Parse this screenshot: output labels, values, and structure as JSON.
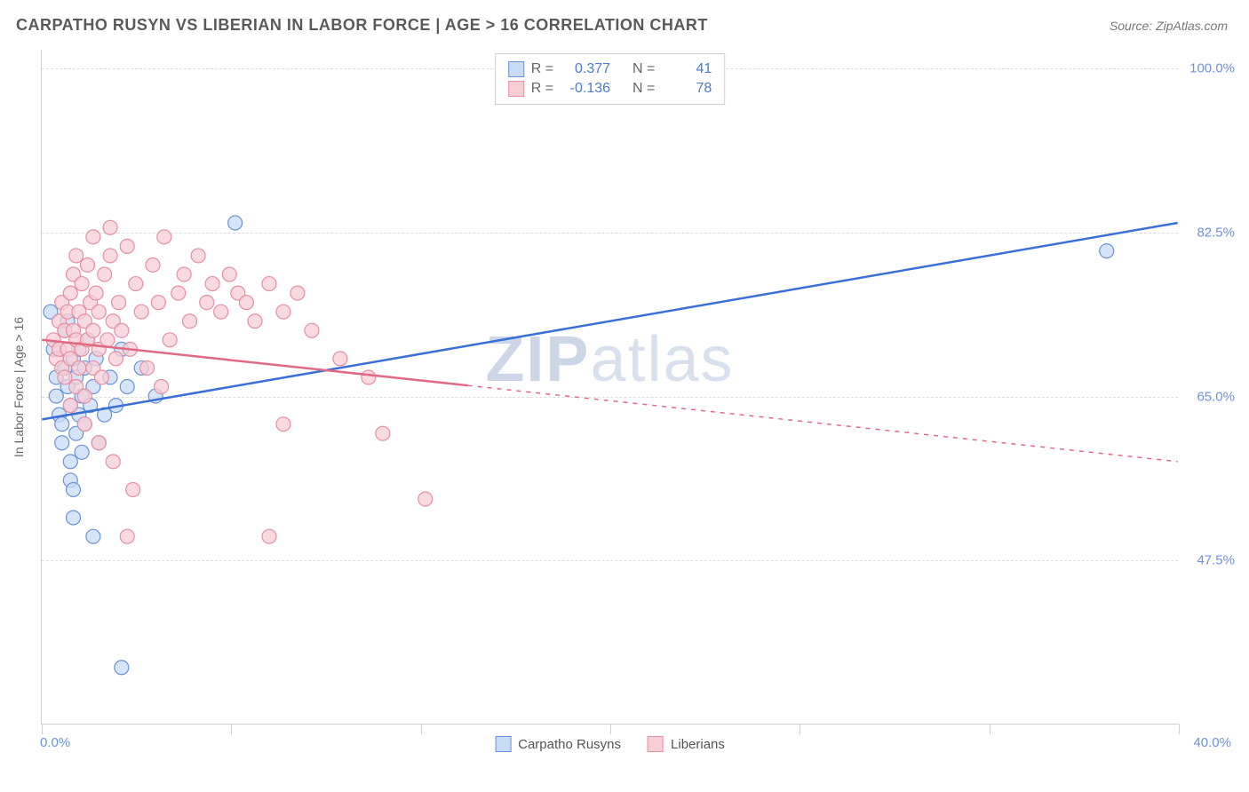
{
  "title": "CARPATHO RUSYN VS LIBERIAN IN LABOR FORCE | AGE > 16 CORRELATION CHART",
  "source": "Source: ZipAtlas.com",
  "y_axis_title": "In Labor Force | Age > 16",
  "watermark_bold": "ZIP",
  "watermark_rest": "atlas",
  "chart": {
    "ymin": 30.0,
    "ymax": 102.0,
    "xmin": 0.0,
    "xmax": 40.0,
    "yticks": [
      {
        "v": 100.0,
        "label": "100.0%"
      },
      {
        "v": 82.5,
        "label": "82.5%"
      },
      {
        "v": 65.0,
        "label": "65.0%"
      },
      {
        "v": 47.5,
        "label": "47.5%"
      }
    ],
    "xticks_v": [
      0,
      6.67,
      13.33,
      20,
      26.67,
      33.33,
      40
    ],
    "x_label_min": "0.0%",
    "x_label_max": "40.0%",
    "grid_color": "#dcdcdc",
    "border_color": "#cfcfcf"
  },
  "series": [
    {
      "name": "Carpatho Rusyns",
      "color_fill": "#c7dbf5",
      "color_stroke": "#6b93d6",
      "line_color": "#3a6fd8",
      "dash_after_x": 40,
      "R_label": "R =",
      "R_value": "0.377",
      "N_label": "N =",
      "N_value": "41",
      "reg": {
        "x1": 0,
        "y1": 62.5,
        "x2": 40,
        "y2": 83.5
      },
      "points": [
        [
          0.3,
          74
        ],
        [
          0.4,
          70
        ],
        [
          0.5,
          67
        ],
        [
          0.5,
          65
        ],
        [
          0.6,
          63
        ],
        [
          0.7,
          62
        ],
        [
          0.7,
          60
        ],
        [
          0.8,
          72
        ],
        [
          0.8,
          68
        ],
        [
          0.9,
          66
        ],
        [
          0.9,
          73
        ],
        [
          1.0,
          64
        ],
        [
          1.0,
          56
        ],
        [
          1.1,
          55
        ],
        [
          1.1,
          69
        ],
        [
          1.2,
          61
        ],
        [
          1.2,
          67
        ],
        [
          1.3,
          70
        ],
        [
          1.3,
          63
        ],
        [
          1.4,
          65
        ],
        [
          1.5,
          68
        ],
        [
          1.5,
          62
        ],
        [
          1.6,
          71
        ],
        [
          1.7,
          64
        ],
        [
          1.8,
          66
        ],
        [
          1.9,
          69
        ],
        [
          2.0,
          60
        ],
        [
          2.2,
          63
        ],
        [
          2.4,
          67
        ],
        [
          2.6,
          64
        ],
        [
          2.8,
          70
        ],
        [
          3.0,
          66
        ],
        [
          3.5,
          68
        ],
        [
          4.0,
          65
        ],
        [
          1.1,
          52
        ],
        [
          1.8,
          50
        ],
        [
          2.8,
          36
        ],
        [
          6.8,
          83.5
        ],
        [
          37.5,
          80.5
        ],
        [
          1.0,
          58
        ],
        [
          1.4,
          59
        ]
      ]
    },
    {
      "name": "Liberians",
      "color_fill": "#f7cdd6",
      "color_stroke": "#e68fa3",
      "line_color": "#e06a84",
      "dash_after_x": 15,
      "R_label": "R =",
      "R_value": "-0.136",
      "N_label": "N =",
      "N_value": "78",
      "reg": {
        "x1": 0,
        "y1": 71,
        "x2": 40,
        "y2": 58
      },
      "points": [
        [
          0.4,
          71
        ],
        [
          0.5,
          69
        ],
        [
          0.6,
          73
        ],
        [
          0.6,
          70
        ],
        [
          0.7,
          68
        ],
        [
          0.7,
          75
        ],
        [
          0.8,
          72
        ],
        [
          0.8,
          67
        ],
        [
          0.9,
          74
        ],
        [
          0.9,
          70
        ],
        [
          1.0,
          76
        ],
        [
          1.0,
          69
        ],
        [
          1.1,
          78
        ],
        [
          1.1,
          72
        ],
        [
          1.2,
          71
        ],
        [
          1.2,
          66
        ],
        [
          1.3,
          74
        ],
        [
          1.3,
          68
        ],
        [
          1.4,
          77
        ],
        [
          1.4,
          70
        ],
        [
          1.5,
          73
        ],
        [
          1.5,
          65
        ],
        [
          1.6,
          79
        ],
        [
          1.6,
          71
        ],
        [
          1.7,
          75
        ],
        [
          1.8,
          68
        ],
        [
          1.8,
          72
        ],
        [
          1.9,
          76
        ],
        [
          2.0,
          70
        ],
        [
          2.0,
          74
        ],
        [
          2.1,
          67
        ],
        [
          2.2,
          78
        ],
        [
          2.3,
          71
        ],
        [
          2.4,
          80
        ],
        [
          2.5,
          73
        ],
        [
          2.6,
          69
        ],
        [
          2.7,
          75
        ],
        [
          2.8,
          72
        ],
        [
          3.0,
          81
        ],
        [
          3.1,
          70
        ],
        [
          3.3,
          77
        ],
        [
          3.5,
          74
        ],
        [
          3.7,
          68
        ],
        [
          3.9,
          79
        ],
        [
          4.1,
          75
        ],
        [
          4.3,
          82
        ],
        [
          4.5,
          71
        ],
        [
          4.8,
          76
        ],
        [
          5.0,
          78
        ],
        [
          5.2,
          73
        ],
        [
          5.5,
          80
        ],
        [
          5.8,
          75
        ],
        [
          6.0,
          77
        ],
        [
          6.3,
          74
        ],
        [
          6.6,
          78
        ],
        [
          6.9,
          76
        ],
        [
          7.2,
          75
        ],
        [
          7.5,
          73
        ],
        [
          8.0,
          77
        ],
        [
          8.5,
          74
        ],
        [
          9.0,
          76
        ],
        [
          9.5,
          72
        ],
        [
          1.2,
          80
        ],
        [
          1.8,
          82
        ],
        [
          2.4,
          83
        ],
        [
          1.5,
          62
        ],
        [
          2.0,
          60
        ],
        [
          2.5,
          58
        ],
        [
          3.2,
          55
        ],
        [
          1.0,
          64
        ],
        [
          3.0,
          50
        ],
        [
          8.0,
          50
        ],
        [
          8.5,
          62
        ],
        [
          12.0,
          61
        ],
        [
          13.5,
          54
        ],
        [
          10.5,
          69
        ],
        [
          11.5,
          67
        ],
        [
          4.2,
          66
        ]
      ]
    }
  ],
  "legend": {
    "item1": "Carpatho Rusyns",
    "item2": "Liberians"
  }
}
